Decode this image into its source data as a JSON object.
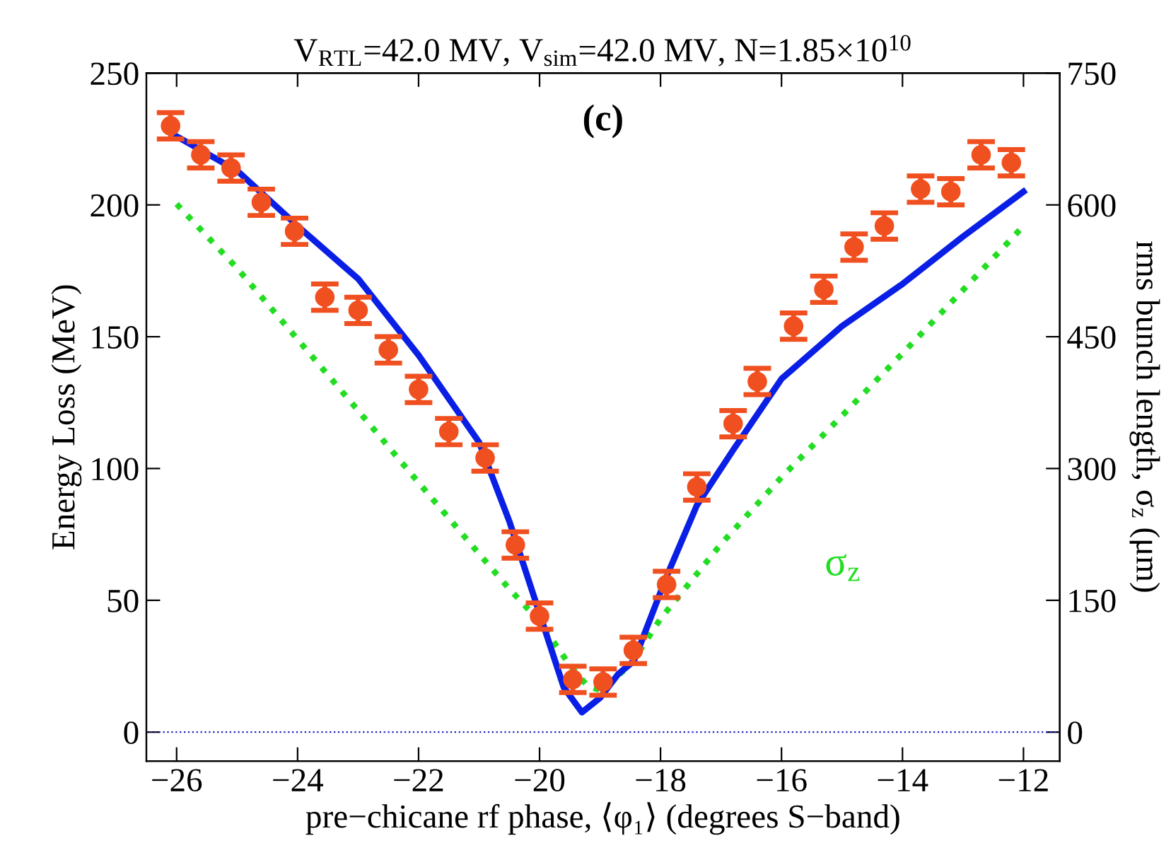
{
  "chart_data": {
    "type": "scatter",
    "title": "V$_{RTL}$=42.0 MV, V$_{sim}$=42.0 MV, N=1.85×10$^{10}$",
    "xlabel": "pre−chicane rf phase, ⟨φ₁⟩ (degrees S−band)",
    "ylabel": "Energy Loss (MeV)",
    "y2label": "rms bunch length, σ$_{z}$ (μm)",
    "xlim": [
      -26.5,
      -11.4
    ],
    "xticks": [
      {
        "value": -26,
        "label": "−26"
      },
      {
        "value": -24,
        "label": "−24"
      },
      {
        "value": -22,
        "label": "−22"
      },
      {
        "value": -20,
        "label": "−20"
      },
      {
        "value": -18,
        "label": "−18"
      },
      {
        "value": -16,
        "label": "−16"
      },
      {
        "value": -14,
        "label": "−14"
      },
      {
        "value": -12,
        "label": "−12"
      }
    ],
    "ylim": [
      -11,
      250
    ],
    "yticks": [
      0,
      50,
      100,
      150,
      200,
      250
    ],
    "y2lim": [
      -33,
      750
    ],
    "y2ticks": [
      0,
      150,
      300,
      450,
      600,
      750
    ],
    "grid": false,
    "legend": false,
    "annotations": [
      "(c)"
    ],
    "ref_lines": [
      {
        "axis": "y",
        "value": 0,
        "color": "#2020c0",
        "line_style": "dotted"
      }
    ],
    "series": [
      {
        "type": "line",
        "color": "#0a1fe6",
        "line_style": "solid",
        "marker": "none",
        "x": [
          -26,
          -25,
          -24,
          -23,
          -22,
          -21,
          -20.5,
          -20,
          -19.6,
          -19.3,
          -19,
          -18.7,
          -18.44,
          -17.9,
          -17.4,
          -16.8,
          -16,
          -15,
          -14,
          -13,
          -12
        ],
        "values": [
          226,
          213,
          192,
          172,
          143,
          110,
          80,
          45,
          17,
          7.5,
          13,
          22,
          27,
          59,
          86,
          107,
          134,
          154,
          170,
          188,
          205
        ]
      },
      {
        "type": "line",
        "axis": "y2",
        "name": "σ$_{z}$",
        "color": "#22dd22",
        "line_style": "dotted",
        "marker": "none",
        "x": [
          -26,
          -25,
          -24,
          -23,
          -22,
          -21,
          -20.5,
          -20,
          -19.5,
          -19.2,
          -19,
          -18.5,
          -18,
          -17,
          -16,
          -15,
          -14,
          -13,
          -12
        ],
        "values": [
          601,
          528,
          447,
          366,
          284,
          203,
          163,
          126,
          76,
          52,
          48,
          76,
          129,
          214,
          290,
          360,
          431,
          503,
          576
        ]
      },
      {
        "color": "#f05020",
        "marker": "circle",
        "x": [
          -26.1,
          -25.6,
          -25.1,
          -24.6,
          -24.05,
          -23.55,
          -23.0,
          -22.5,
          -22.0,
          -21.5,
          -20.9,
          -20.4,
          -20.0,
          -19.45,
          -18.95,
          -18.45,
          -17.9,
          -17.4,
          -16.8,
          -16.4,
          -15.8,
          -15.3,
          -14.8,
          -14.3,
          -13.7,
          -13.2,
          -12.7,
          -12.2
        ],
        "values": [
          230,
          219,
          214,
          201,
          190,
          165,
          160,
          145,
          130,
          114,
          104,
          71,
          44,
          20,
          19,
          31,
          56,
          93,
          117,
          133,
          154,
          168,
          184,
          192,
          206,
          205,
          219,
          216
        ],
        "errors": [
          5,
          5,
          5,
          5,
          5,
          5,
          5,
          5,
          5,
          5,
          5,
          5,
          5,
          5,
          5,
          5,
          5,
          5,
          5,
          5,
          5,
          5,
          5,
          5,
          5,
          5,
          5,
          5
        ]
      }
    ]
  }
}
